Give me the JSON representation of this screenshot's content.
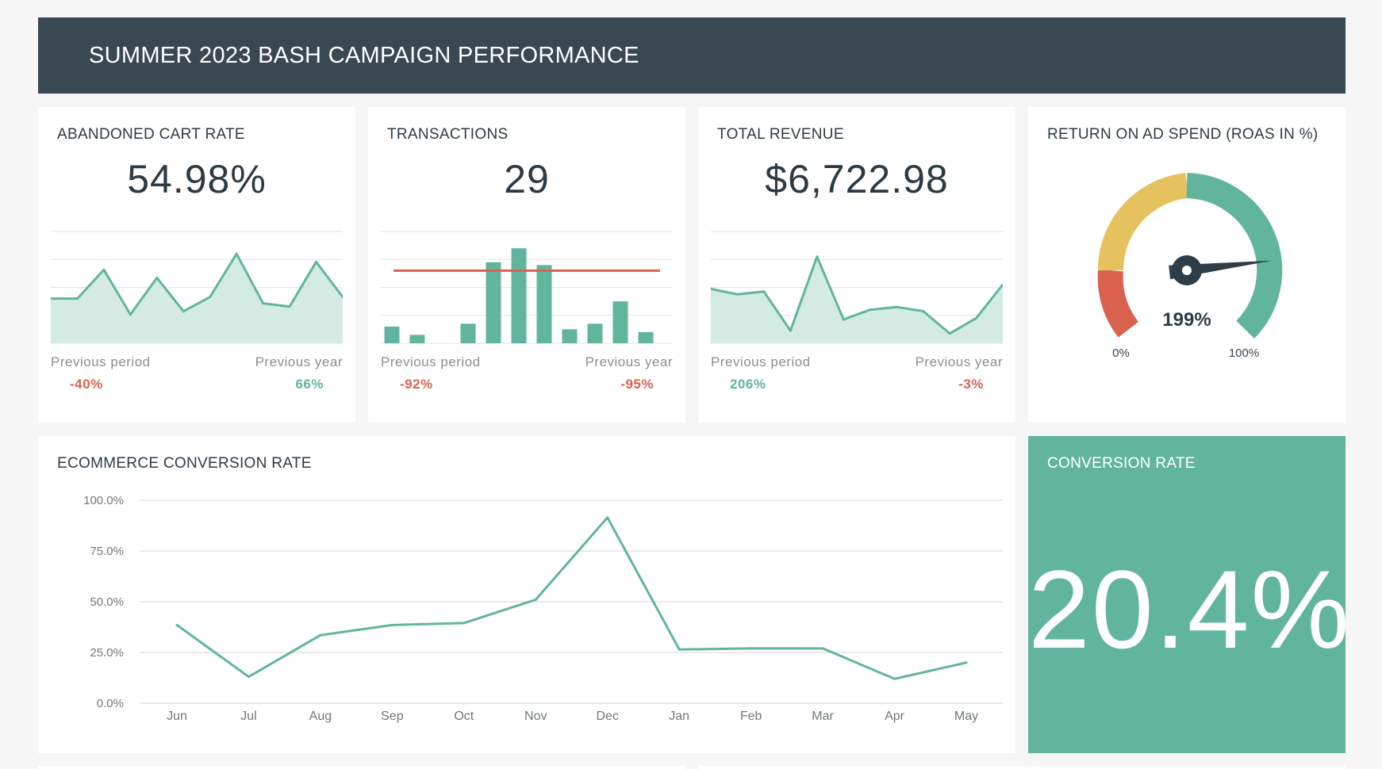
{
  "header": {
    "title": "SUMMER 2023 BASH CAMPAIGN PERFORMANCE"
  },
  "colors": {
    "header_bg": "#3a4852",
    "accent": "#62b59d",
    "negative": "#d9624f",
    "gauge_yellow": "#e6c25e"
  },
  "kpis": [
    {
      "title": "ABANDONED CART RATE",
      "value": "54.98%",
      "chart_type": "area",
      "prev_period_label": "Previous period",
      "prev_period_delta": "-40%",
      "prev_period_trend": "negative",
      "prev_year_label": "Previous year",
      "prev_year_delta": "66%",
      "prev_year_trend": "positive"
    },
    {
      "title": "TRANSACTIONS",
      "value": "29",
      "chart_type": "bar",
      "prev_period_label": "Previous period",
      "prev_period_delta": "-92%",
      "prev_period_trend": "negative",
      "prev_year_label": "Previous year",
      "prev_year_delta": "-95%",
      "prev_year_trend": "negative"
    },
    {
      "title": "TOTAL REVENUE",
      "value": "$6,722.98",
      "chart_type": "area",
      "prev_period_label": "Previous period",
      "prev_period_delta": "206%",
      "prev_period_trend": "positive",
      "prev_year_label": "Previous year",
      "prev_year_delta": "-3%",
      "prev_year_trend": "negative"
    }
  ],
  "roas": {
    "title": "RETURN ON AD SPEND (ROAS IN %)",
    "value_label": "199%",
    "value": 199,
    "min_label": "0%",
    "max_label": "100%"
  },
  "conversion": {
    "title": "CONVERSION RATE",
    "value": "20.4%"
  },
  "line_chart": {
    "title": "ECOMMERCE CONVERSION RATE"
  },
  "chart_data": [
    {
      "type": "area",
      "title": "ABANDONED CART RATE",
      "values": [
        58,
        58,
        76,
        48,
        71,
        50,
        59,
        86,
        55,
        53,
        81,
        59
      ],
      "ylim": [
        30,
        100
      ]
    },
    {
      "type": "bar",
      "title": "TRANSACTIONS",
      "values": [
        6,
        3,
        0,
        7,
        29,
        34,
        28,
        5,
        7,
        15,
        4,
        0
      ],
      "reference_line": 26,
      "ylim": [
        0,
        40
      ]
    },
    {
      "type": "area",
      "title": "TOTAL REVENUE",
      "values": [
        59,
        55,
        57,
        29,
        82,
        37,
        44,
        46,
        43,
        27,
        38,
        62
      ],
      "ylim": [
        20,
        100
      ]
    },
    {
      "type": "line",
      "title": "ECOMMERCE CONVERSION RATE",
      "categories": [
        "Jun",
        "Jul",
        "Aug",
        "Sep",
        "Oct",
        "Nov",
        "Dec",
        "Jan",
        "Feb",
        "Mar",
        "Apr",
        "May"
      ],
      "values": [
        38.5,
        13,
        33.5,
        38.5,
        39.5,
        51,
        91.5,
        26.5,
        27,
        27,
        12,
        20
      ],
      "ylim": [
        0,
        100
      ],
      "yticks": [
        "0.0%",
        "25.0%",
        "50.0%",
        "75.0%",
        "100.0%"
      ],
      "ytick_values": [
        0,
        25,
        50,
        75,
        100
      ],
      "grid": true
    }
  ]
}
